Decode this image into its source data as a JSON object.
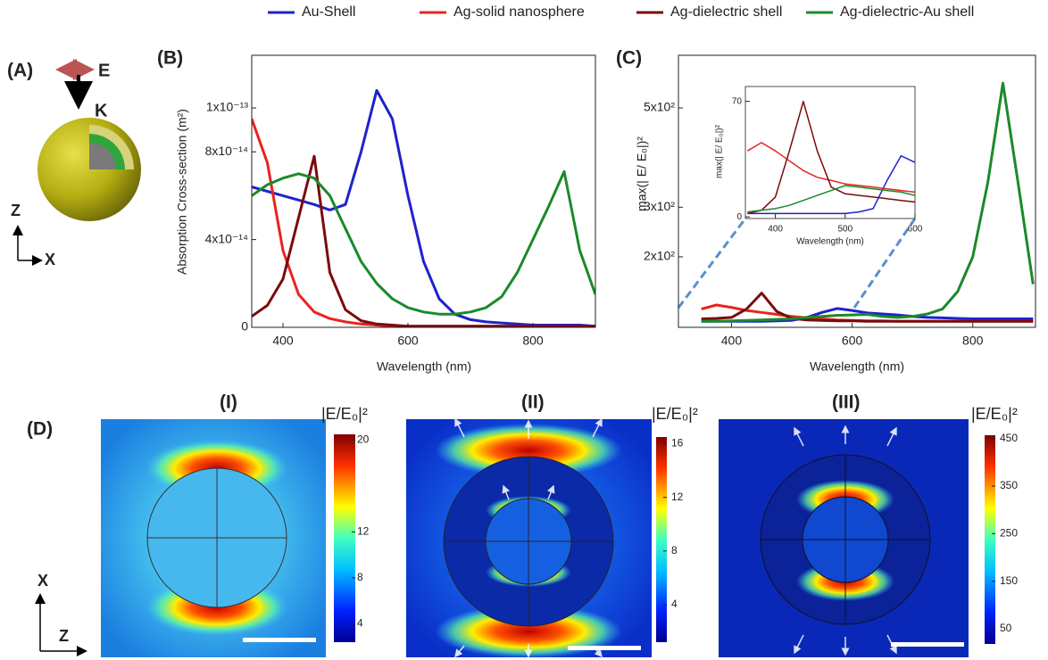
{
  "panels": {
    "a": "(A)",
    "b": "(B)",
    "c": "(C)",
    "d": "(D)",
    "d1": "(I)",
    "d2": "(II)",
    "d3": "(III)"
  },
  "schematic": {
    "e": "E",
    "k": "K",
    "z": "Z",
    "x": "X"
  },
  "field_axes": {
    "x": "X",
    "z": "Z"
  },
  "chart_data": [
    {
      "type": "line",
      "x_label": "Wavelength (nm)",
      "y_label": "Absorption Cross-section (m²)",
      "x": [
        350,
        375,
        400,
        425,
        450,
        475,
        500,
        525,
        550,
        575,
        600,
        625,
        650,
        675,
        700,
        725,
        750,
        775,
        800,
        825,
        850,
        875,
        900
      ],
      "series": [
        {
          "name": "Au-Shell",
          "color": "#1f22cc",
          "values": [
            6.4e-14,
            6.2e-14,
            6e-14,
            5.8e-14,
            5.6e-14,
            5.35e-14,
            5.6e-14,
            8e-14,
            1.08e-13,
            9.5e-14,
            6e-14,
            3e-14,
            1.3e-14,
            6e-15,
            3.5e-15,
            2.5e-15,
            2e-15,
            1.5e-15,
            1e-15,
            1e-15,
            1e-15,
            1e-15,
            5e-16
          ]
        },
        {
          "name": "Ag-solid nanosphere",
          "color": "#e8231f",
          "values": [
            9.5e-14,
            7.5e-14,
            3.5e-14,
            1.5e-14,
            7e-15,
            4e-15,
            2.5e-15,
            1.5e-15,
            1e-15,
            5e-16,
            5e-16,
            5e-16,
            5e-16,
            5e-16,
            5e-16,
            5e-16,
            5e-16,
            5e-16,
            5e-16,
            5e-16,
            5e-16,
            5e-16,
            5e-16
          ]
        },
        {
          "name": "Ag-dielectric shell",
          "color": "#7a0b0b",
          "values": [
            5e-15,
            1e-14,
            2.2e-14,
            5e-14,
            7.8e-14,
            2.5e-14,
            8e-15,
            3e-15,
            1.5e-15,
            1e-15,
            5e-16,
            5e-16,
            5e-16,
            5e-16,
            5e-16,
            5e-16,
            5e-16,
            5e-16,
            5e-16,
            5e-16,
            5e-16,
            5e-16,
            5e-16
          ]
        },
        {
          "name": "Ag-dielectric-Au shell",
          "color": "#1a8a2a",
          "values": [
            6e-14,
            6.5e-14,
            6.8e-14,
            7e-14,
            6.8e-14,
            6e-14,
            4.5e-14,
            3e-14,
            2e-14,
            1.3e-14,
            9e-15,
            7e-15,
            6e-15,
            6e-15,
            7e-15,
            9e-15,
            1.4e-14,
            2.5e-14,
            4e-14,
            5.5e-14,
            7.1e-14,
            3.5e-14,
            1.5e-14
          ]
        }
      ],
      "xlim": [
        350,
        900
      ],
      "ylim": [
        0,
        1.24e-13
      ],
      "xticks": [
        400,
        600,
        800
      ],
      "yticks": [
        0,
        {
          "value": 4e-14,
          "label": "4x10⁻¹⁴"
        },
        {
          "value": 8e-14,
          "label": "8x10⁻¹⁴"
        },
        {
          "value": 1e-13,
          "label": "1x10⁻¹³"
        }
      ]
    },
    {
      "type": "line",
      "x_label": "Wavelength (nm)",
      "y_label": "max(| E/ E₀|)²",
      "x": [
        350,
        375,
        400,
        425,
        450,
        475,
        500,
        525,
        550,
        575,
        600,
        625,
        650,
        675,
        700,
        725,
        750,
        775,
        800,
        825,
        850,
        875,
        900
      ],
      "series": [
        {
          "color": "#1f22cc",
          "values": [
            70,
            70,
            70,
            70,
            70,
            71,
            72,
            78,
            88,
            96,
            92,
            87,
            85,
            83,
            80,
            78,
            77,
            76,
            75,
            75,
            75,
            75,
            75
          ]
        },
        {
          "color": "#e8231f",
          "values": [
            95,
            103,
            98,
            92,
            88,
            84,
            80,
            77,
            75,
            73,
            72,
            71,
            71,
            70,
            70,
            70,
            70,
            70,
            70,
            70,
            70,
            70,
            70
          ]
        },
        {
          "color": "#7a0b0b",
          "values": [
            75,
            76,
            78,
            95,
            127,
            90,
            76,
            73,
            72,
            71,
            71,
            70,
            70,
            70,
            70,
            70,
            70,
            70,
            70,
            70,
            70,
            70,
            70
          ]
        },
        {
          "color": "#1a8a2a",
          "values": [
            70,
            70,
            71,
            72,
            73,
            74,
            75,
            78,
            80,
            82,
            83,
            84,
            80,
            78,
            80,
            85,
            95,
            130,
            200,
            350,
            550,
            350,
            145
          ]
        }
      ],
      "xlim": [
        312,
        904
      ],
      "ylim": [
        58,
        606
      ],
      "xticks": [
        400,
        600,
        800
      ],
      "yticks": [
        {
          "value": 200,
          "label": "2x10²"
        },
        {
          "value": 300,
          "label": "3x10²"
        },
        {
          "value": 500,
          "label": "5x10²"
        }
      ]
    },
    {
      "type": "line",
      "x_label": "Wavelength (nm)",
      "y_label": "max(| E/ E₀|)²",
      "x": [
        360,
        380,
        400,
        420,
        440,
        460,
        480,
        500,
        520,
        540,
        560,
        580,
        600
      ],
      "series": [
        {
          "color": "#1f22cc",
          "values": [
            2,
            2,
            2,
            2,
            2,
            2,
            2,
            2,
            3,
            5,
            22,
            37,
            33
          ]
        },
        {
          "color": "#e8231f",
          "values": [
            40,
            45,
            40,
            34,
            28,
            24,
            22,
            20,
            19,
            18,
            17,
            16,
            15
          ]
        },
        {
          "color": "#7a0b0b",
          "values": [
            2,
            4,
            12,
            40,
            70,
            40,
            18,
            14,
            13,
            12,
            11,
            10,
            9
          ]
        },
        {
          "color": "#1a8a2a",
          "values": [
            3,
            4,
            5,
            7,
            10,
            13,
            16,
            19,
            18,
            17,
            16,
            15,
            13
          ]
        }
      ],
      "xlim": [
        357,
        600
      ],
      "ylim": [
        -1,
        79
      ],
      "xticks": [
        400,
        500,
        600
      ],
      "yticks": [
        0,
        70
      ]
    }
  ],
  "colorbars": [
    {
      "title": "|E/E₀|²",
      "range": [
        2.4,
        20.5
      ],
      "ticks": [
        4,
        8,
        12,
        20
      ]
    },
    {
      "title": "|E/E₀|²",
      "range": [
        1.2,
        16.5
      ],
      "ticks": [
        4,
        8,
        12,
        16
      ]
    },
    {
      "title": "|E/E₀|²",
      "range": [
        18,
        457
      ],
      "ticks": [
        50,
        150,
        250,
        350,
        450
      ]
    }
  ]
}
